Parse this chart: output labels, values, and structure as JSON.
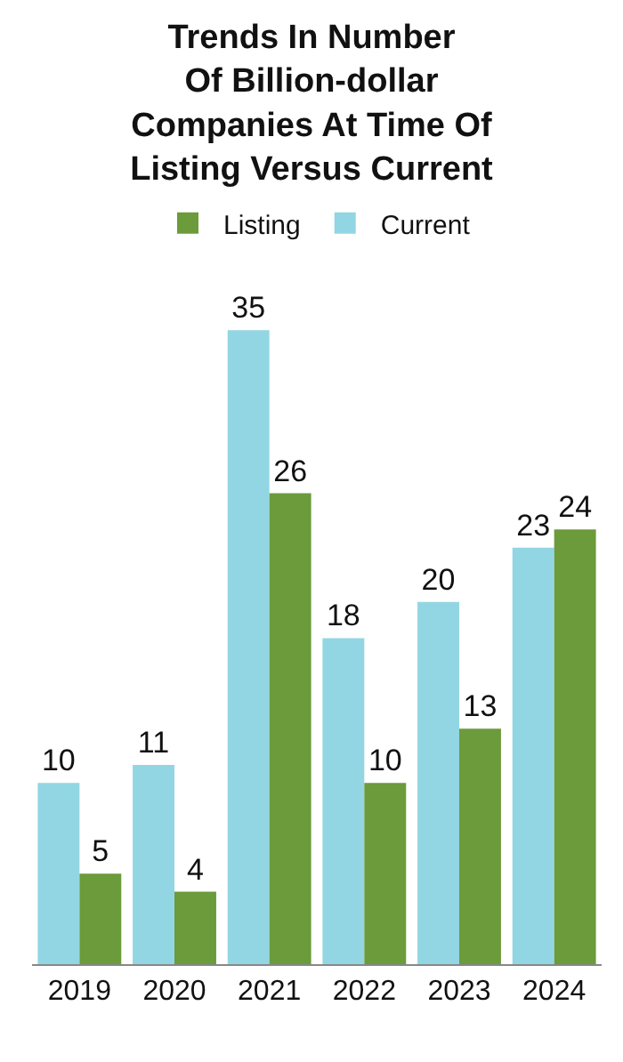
{
  "chart_data": {
    "type": "bar",
    "title": "Trends In Number\nOf Billion-dollar\nCompanies At Time Of\nListing Versus Current",
    "categories": [
      "2019",
      "2020",
      "2021",
      "2022",
      "2023",
      "2024"
    ],
    "series": [
      {
        "name": "Current",
        "color": "#92d6e3",
        "values": [
          10,
          11,
          35,
          18,
          20,
          23
        ]
      },
      {
        "name": "Listing",
        "color": "#6b9b3a",
        "values": [
          5,
          4,
          26,
          10,
          13,
          24
        ]
      }
    ],
    "data_labels": true,
    "legend": "top"
  }
}
